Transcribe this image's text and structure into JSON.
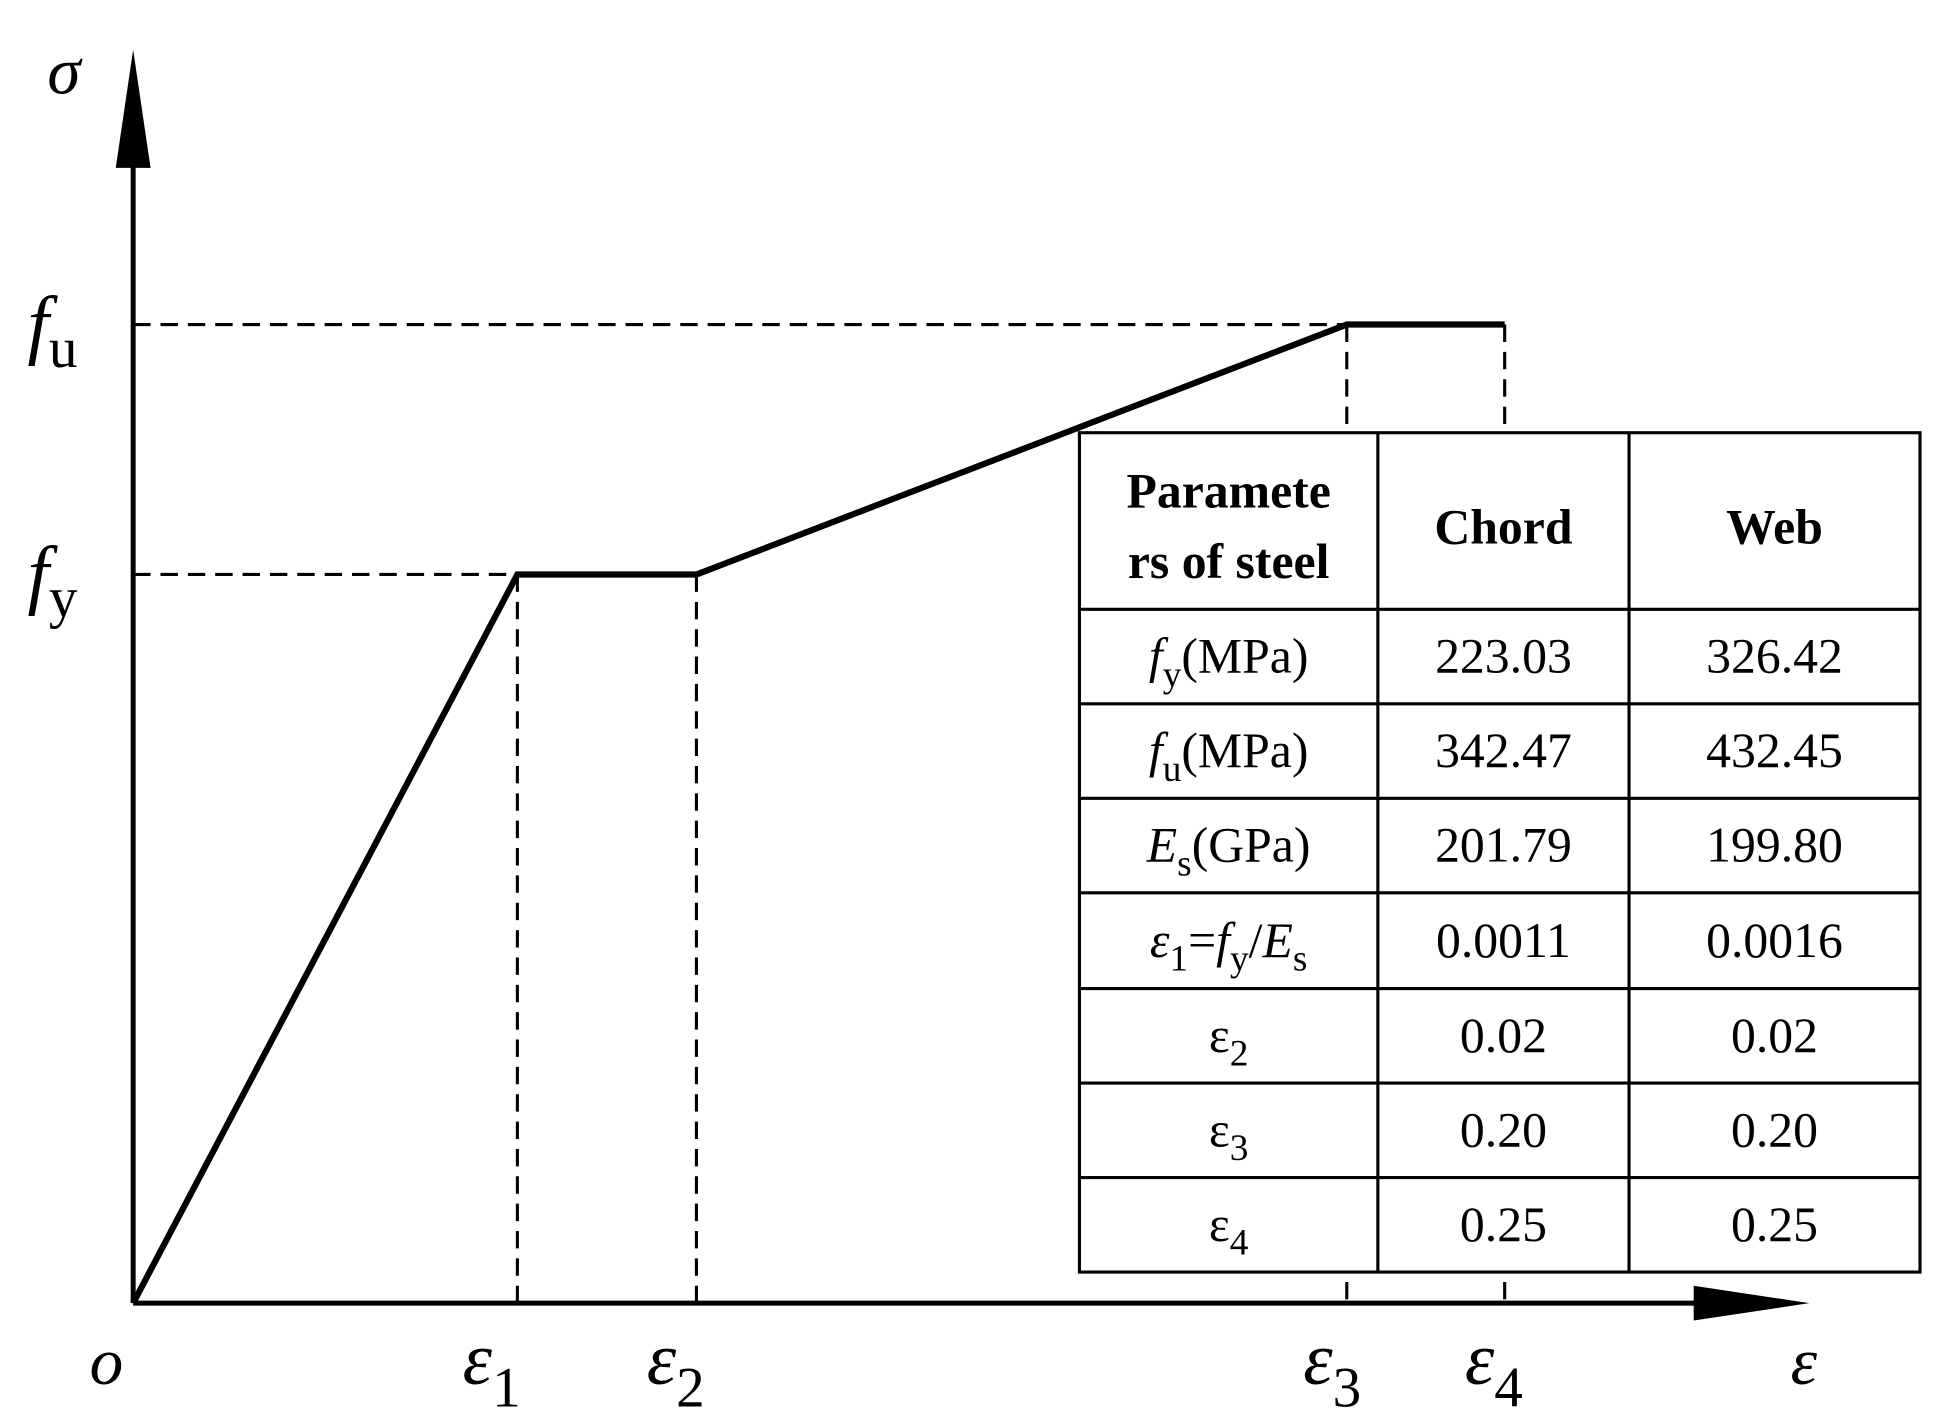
{
  "axes": {
    "y_label": "σ",
    "x_label": "ε",
    "origin": "o"
  },
  "y_marks": [
    {
      "symbol": "f",
      "sub": "u"
    },
    {
      "symbol": "f",
      "sub": "y"
    }
  ],
  "x_marks": [
    {
      "symbol": "ε",
      "sub": "1"
    },
    {
      "symbol": "ε",
      "sub": "2"
    },
    {
      "symbol": "ε",
      "sub": "3"
    },
    {
      "symbol": "ε",
      "sub": "4"
    }
  ],
  "table": {
    "header": {
      "parameter": [
        "Paramete",
        "rs of steel"
      ],
      "chord": "Chord",
      "web": "Web"
    },
    "rows": [
      {
        "label": [
          "f",
          "y",
          "(MPa)"
        ],
        "values": [
          "223.03",
          "326.42"
        ]
      },
      {
        "label": [
          "f",
          "u",
          "(MPa)"
        ],
        "values": [
          "342.47",
          "432.45"
        ]
      },
      {
        "label": [
          "E",
          "s",
          "(GPa)"
        ],
        "values": [
          "201.79",
          "199.80"
        ]
      },
      {
        "label": [
          "ε",
          "1",
          "=",
          "f",
          "y",
          "/",
          "E",
          "s"
        ],
        "values": [
          "0.0011",
          "0.0016"
        ]
      },
      {
        "label": [
          "ε",
          "2"
        ],
        "values": [
          "0.02",
          "0.02"
        ]
      },
      {
        "label": [
          "ε",
          "3"
        ],
        "values": [
          "0.20",
          "0.20"
        ]
      },
      {
        "label": [
          "ε",
          "4"
        ],
        "values": [
          "0.25",
          "0.25"
        ]
      }
    ]
  }
}
